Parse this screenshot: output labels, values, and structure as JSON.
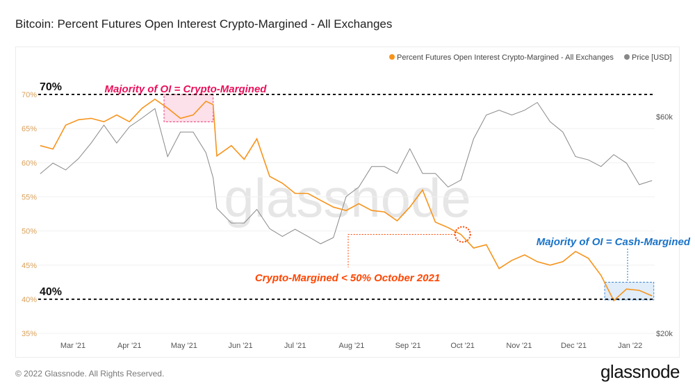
{
  "title": "Bitcoin: Percent Futures Open Interest Crypto-Margined - All Exchanges",
  "footer": "© 2022 Glassnode. All Rights Reserved.",
  "brand": "glassnode",
  "watermark": "glassnode",
  "chart_data": {
    "type": "line",
    "title": "Bitcoin: Percent Futures Open Interest Crypto-Margined - All Exchanges",
    "legend_placement": "top-right",
    "grid": true,
    "colors": {
      "oi": "#f7931a",
      "price": "#888888",
      "crypto_annotation": "#e8115b",
      "october_annotation": "#ff4500",
      "cash_annotation": "#1a73c8"
    },
    "x_ticks": [
      {
        "date": "2021-03-01",
        "label": "Mar '21"
      },
      {
        "date": "2021-04-01",
        "label": "Apr '21"
      },
      {
        "date": "2021-05-01",
        "label": "May '21"
      },
      {
        "date": "2021-06-01",
        "label": "Jun '21"
      },
      {
        "date": "2021-07-01",
        "label": "Jul '21"
      },
      {
        "date": "2021-08-01",
        "label": "Aug '21"
      },
      {
        "date": "2021-09-01",
        "label": "Sep '21"
      },
      {
        "date": "2021-10-01",
        "label": "Oct '21"
      },
      {
        "date": "2021-11-01",
        "label": "Nov '21"
      },
      {
        "date": "2021-12-01",
        "label": "Dec '21"
      },
      {
        "date": "2022-01-01",
        "label": "Jan '22"
      }
    ],
    "x_range": [
      "2021-02-11",
      "2022-01-14"
    ],
    "y_left": {
      "range": [
        35,
        71.5
      ],
      "ticks": [
        35,
        40,
        45,
        50,
        55,
        60,
        65,
        70
      ],
      "tick_labels": [
        "35%",
        "40%",
        "45%",
        "50%",
        "55%",
        "60%",
        "65%",
        "70%"
      ]
    },
    "y_right": {
      "scale": "log",
      "ticks": [
        20000,
        60000
      ],
      "tick_labels": [
        "$20k",
        "$60k"
      ]
    },
    "x": [
      "2021-02-11",
      "2021-02-18",
      "2021-02-25",
      "2021-03-04",
      "2021-03-11",
      "2021-03-18",
      "2021-03-25",
      "2021-04-01",
      "2021-04-08",
      "2021-04-15",
      "2021-04-22",
      "2021-04-29",
      "2021-05-06",
      "2021-05-13",
      "2021-05-17",
      "2021-05-19",
      "2021-05-27",
      "2021-06-03",
      "2021-06-10",
      "2021-06-17",
      "2021-06-24",
      "2021-07-01",
      "2021-07-08",
      "2021-07-15",
      "2021-07-22",
      "2021-07-29",
      "2021-08-05",
      "2021-08-12",
      "2021-08-19",
      "2021-08-26",
      "2021-09-02",
      "2021-09-09",
      "2021-09-16",
      "2021-09-23",
      "2021-09-30",
      "2021-10-07",
      "2021-10-14",
      "2021-10-21",
      "2021-10-28",
      "2021-11-04",
      "2021-11-11",
      "2021-11-18",
      "2021-11-25",
      "2021-12-02",
      "2021-12-09",
      "2021-12-16",
      "2021-12-23",
      "2021-12-30",
      "2022-01-06",
      "2022-01-13"
    ],
    "series": [
      {
        "name": "Percent Futures Open Interest Crypto-Margined - All Exchanges",
        "axis": "left",
        "unit": "%",
        "values": [
          62.5,
          62.0,
          65.5,
          66.3,
          66.5,
          66.0,
          67.0,
          66.0,
          68.0,
          69.3,
          68.0,
          66.5,
          67.0,
          69.0,
          68.5,
          61.0,
          62.5,
          60.5,
          63.5,
          58.0,
          57.0,
          55.5,
          55.5,
          54.5,
          53.5,
          53.0,
          54.0,
          53.0,
          52.8,
          51.5,
          53.5,
          56.0,
          51.3,
          50.5,
          49.5,
          47.5,
          48.0,
          44.5,
          45.7,
          46.5,
          45.5,
          45.0,
          45.5,
          47.0,
          46.0,
          43.5,
          39.8,
          41.5,
          41.3,
          40.5
        ]
      },
      {
        "name": "Price [USD]",
        "axis": "right",
        "unit": "USD",
        "values": [
          44900,
          47400,
          45800,
          48500,
          52500,
          57500,
          52500,
          57000,
          59600,
          62500,
          49000,
          55500,
          55500,
          50000,
          44000,
          37700,
          35000,
          35000,
          37500,
          34000,
          32700,
          33900,
          32700,
          31500,
          32500,
          40000,
          42000,
          46600,
          46600,
          45000,
          51000,
          45000,
          45000,
          42000,
          43500,
          53600,
          60500,
          62000,
          60500,
          62000,
          64500,
          58500,
          55500,
          49000,
          48200,
          46600,
          49500,
          47400,
          42500,
          43400
        ]
      }
    ],
    "annotations": {
      "line_70": {
        "value": 70,
        "label": "70%"
      },
      "line_40": {
        "value": 40,
        "label": "40%"
      },
      "crypto_box": {
        "label": "Majority of OI = Crypto-Margined",
        "from": "2021-04-20",
        "to": "2021-05-17",
        "y_range": [
          66,
          70
        ]
      },
      "october": {
        "label": "Crypto-Margined < 50% October 2021",
        "date": "2021-10-01",
        "value": 49.5
      },
      "cash_box": {
        "label": "Majority of OI = Cash-Margined",
        "from": "2021-12-18",
        "to": "2022-01-14",
        "y_range": [
          39.9,
          42.5
        ]
      }
    }
  }
}
